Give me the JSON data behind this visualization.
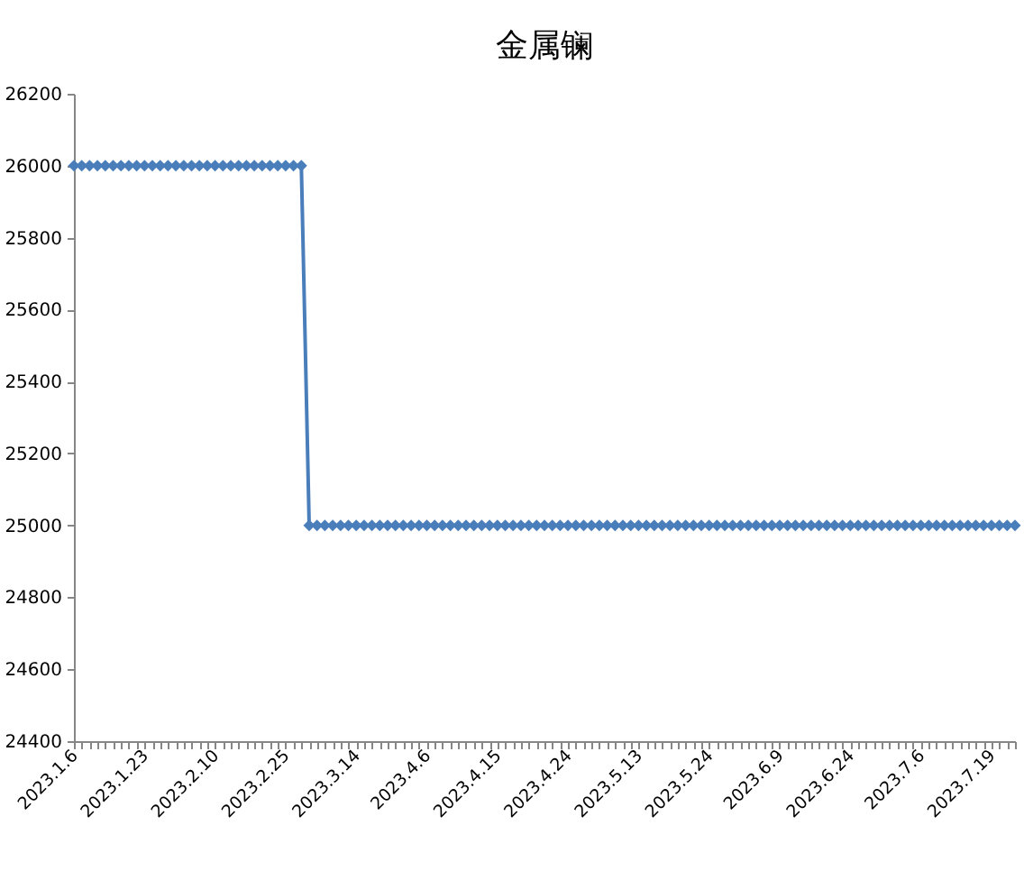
{
  "chart_data": {
    "type": "line",
    "title": "金属镧",
    "categories": [
      "2023.1.6",
      null,
      null,
      null,
      null,
      null,
      null,
      null,
      null,
      "2023.1.23",
      null,
      null,
      null,
      null,
      null,
      null,
      null,
      null,
      "2023.2.10",
      null,
      null,
      null,
      null,
      null,
      null,
      null,
      null,
      "2023.2.25",
      null,
      null,
      null,
      null,
      null,
      null,
      null,
      null,
      "2023.3.14",
      null,
      null,
      null,
      null,
      null,
      null,
      null,
      null,
      "2023.4.6",
      null,
      null,
      null,
      null,
      null,
      null,
      null,
      null,
      "2023.4.15",
      null,
      null,
      null,
      null,
      null,
      null,
      null,
      null,
      "2023.4.24",
      null,
      null,
      null,
      null,
      null,
      null,
      null,
      null,
      "2023.5.13",
      null,
      null,
      null,
      null,
      null,
      null,
      null,
      null,
      "2023.5.24",
      null,
      null,
      null,
      null,
      null,
      null,
      null,
      null,
      "2023.6.9",
      null,
      null,
      null,
      null,
      null,
      null,
      null,
      null,
      "2023.6.24",
      null,
      null,
      null,
      null,
      null,
      null,
      null,
      null,
      "2023.7.6",
      null,
      null,
      null,
      null,
      null,
      null,
      null,
      null,
      "2023.7.19",
      null,
      null,
      null
    ],
    "series": [
      {
        "color": "#4a7ebb",
        "values": [
          26000,
          26000,
          26000,
          26000,
          26000,
          26000,
          26000,
          26000,
          26000,
          26000,
          26000,
          26000,
          26000,
          26000,
          26000,
          26000,
          26000,
          26000,
          26000,
          26000,
          26000,
          26000,
          26000,
          26000,
          26000,
          26000,
          26000,
          26000,
          26000,
          26000,
          25000,
          25000,
          25000,
          25000,
          25000,
          25000,
          25000,
          25000,
          25000,
          25000,
          25000,
          25000,
          25000,
          25000,
          25000,
          25000,
          25000,
          25000,
          25000,
          25000,
          25000,
          25000,
          25000,
          25000,
          25000,
          25000,
          25000,
          25000,
          25000,
          25000,
          25000,
          25000,
          25000,
          25000,
          25000,
          25000,
          25000,
          25000,
          25000,
          25000,
          25000,
          25000,
          25000,
          25000,
          25000,
          25000,
          25000,
          25000,
          25000,
          25000,
          25000,
          25000,
          25000,
          25000,
          25000,
          25000,
          25000,
          25000,
          25000,
          25000,
          25000,
          25000,
          25000,
          25000,
          25000,
          25000,
          25000,
          25000,
          25000,
          25000,
          25000,
          25000,
          25000,
          25000,
          25000,
          25000,
          25000,
          25000,
          25000,
          25000,
          25000,
          25000,
          25000,
          25000,
          25000,
          25000,
          25000,
          25000,
          25000,
          25000,
          25000
        ]
      }
    ],
    "ylim": [
      24400,
      26200
    ],
    "yticks": [
      24400,
      24600,
      24800,
      25000,
      25200,
      25400,
      25600,
      25800,
      26000,
      26200
    ],
    "marker": "diamond",
    "line_style": "solid",
    "grid": false
  }
}
